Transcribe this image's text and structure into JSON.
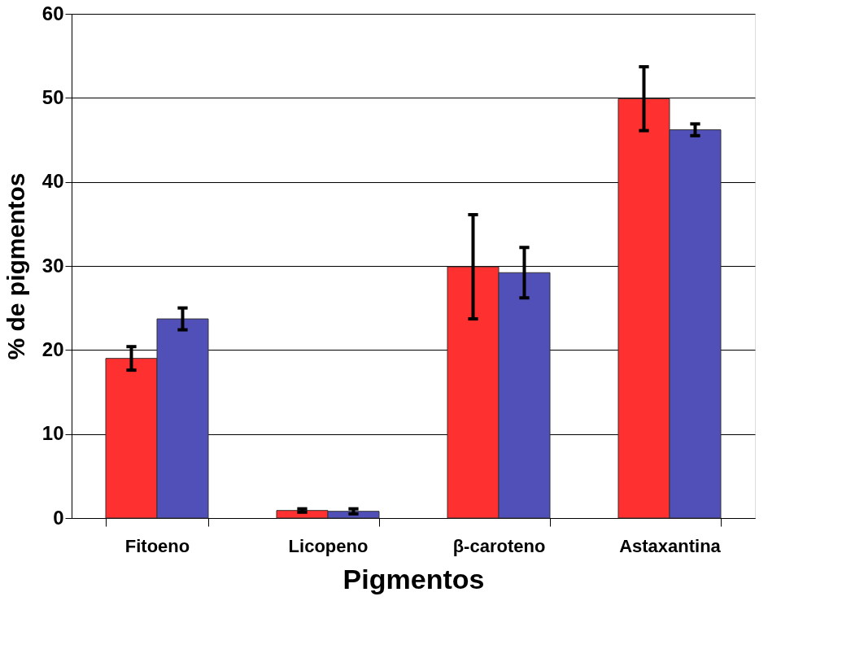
{
  "chart_data": {
    "type": "bar",
    "xlabel": "Pigmentos",
    "ylabel": "% de pigmentos",
    "categories": [
      "Fitoeno",
      "Licopeno",
      "β-caroteno",
      "Astaxantina"
    ],
    "series": [
      {
        "color": "#ff3030",
        "values": [
          19.0,
          0.9,
          29.9,
          49.9
        ],
        "errors": [
          1.4,
          0.2,
          6.2,
          3.8
        ]
      },
      {
        "color": "#5050b8",
        "values": [
          23.7,
          0.8,
          29.2,
          46.2
        ],
        "errors": [
          1.3,
          0.3,
          3.0,
          0.7
        ]
      }
    ],
    "ylim": [
      0,
      60
    ],
    "yticks": [
      0,
      10,
      20,
      30,
      40,
      50,
      60
    ],
    "grid": "y",
    "legend": false
  }
}
